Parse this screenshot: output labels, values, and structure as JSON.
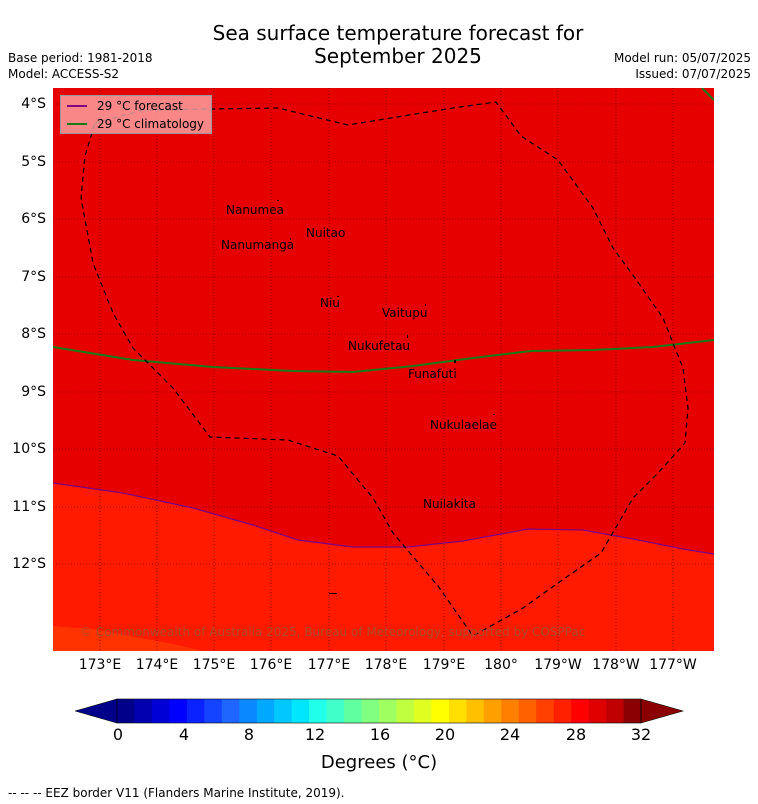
{
  "header": {
    "title_line1": "Sea surface temperature forecast for",
    "title_line2": "September 2025",
    "base_period": "Base period: 1981-2018",
    "model": "Model: ACCESS-S2",
    "model_run": "Model run: 05/07/2025",
    "issued": "Issued: 07/07/2025"
  },
  "map": {
    "lat_labels": [
      "4°S",
      "5°S",
      "6°S",
      "7°S",
      "8°S",
      "9°S",
      "10°S",
      "11°S",
      "12°S"
    ],
    "lon_labels": [
      "173°E",
      "174°E",
      "175°E",
      "176°E",
      "177°E",
      "178°E",
      "179°E",
      "180°",
      "179°W",
      "178°W",
      "177°W"
    ],
    "islands": [
      "Nanumea",
      "Nuitao",
      "Nanumanga",
      "Niu",
      "Vaitupu",
      "Nukufetau",
      "Funafuti",
      "Nukulaelae",
      "Nuilakita"
    ],
    "colors": {
      "deep_red": "#e60000",
      "red_orange": "#ff1a00",
      "orange": "#ff3300",
      "grid": "#660000",
      "forecast_line": "#800080",
      "climatology_line": "#1a7a1a"
    }
  },
  "legend": {
    "forecast_label": "29 °C  forecast",
    "climatology_label": "29 °C  climatology"
  },
  "copyright": "© Commonwealth of Australia 2025, Bureau of Meteorology, supported by COSPPac",
  "colorbar": {
    "ticks": [
      "0",
      "4",
      "8",
      "12",
      "16",
      "20",
      "24",
      "28",
      "32"
    ],
    "label": "Degrees (°C)",
    "colors": [
      "#00008b",
      "#0000b0",
      "#0000d6",
      "#0000ff",
      "#0a22ff",
      "#1444ff",
      "#1e66ff",
      "#0a88ff",
      "#00a8ff",
      "#00c8ff",
      "#00e6ff",
      "#20ffea",
      "#40ffc8",
      "#60ffa0",
      "#80ff80",
      "#a0ff60",
      "#c0ff40",
      "#e0ff20",
      "#ffff00",
      "#ffe000",
      "#ffc000",
      "#ffa000",
      "#ff8000",
      "#ff6000",
      "#ff4000",
      "#ff2000",
      "#ff0000",
      "#e00000",
      "#c00000",
      "#8b0000"
    ]
  },
  "footer": "-- -- -- EEZ border V11 (Flanders Marine Institute, 2019)."
}
